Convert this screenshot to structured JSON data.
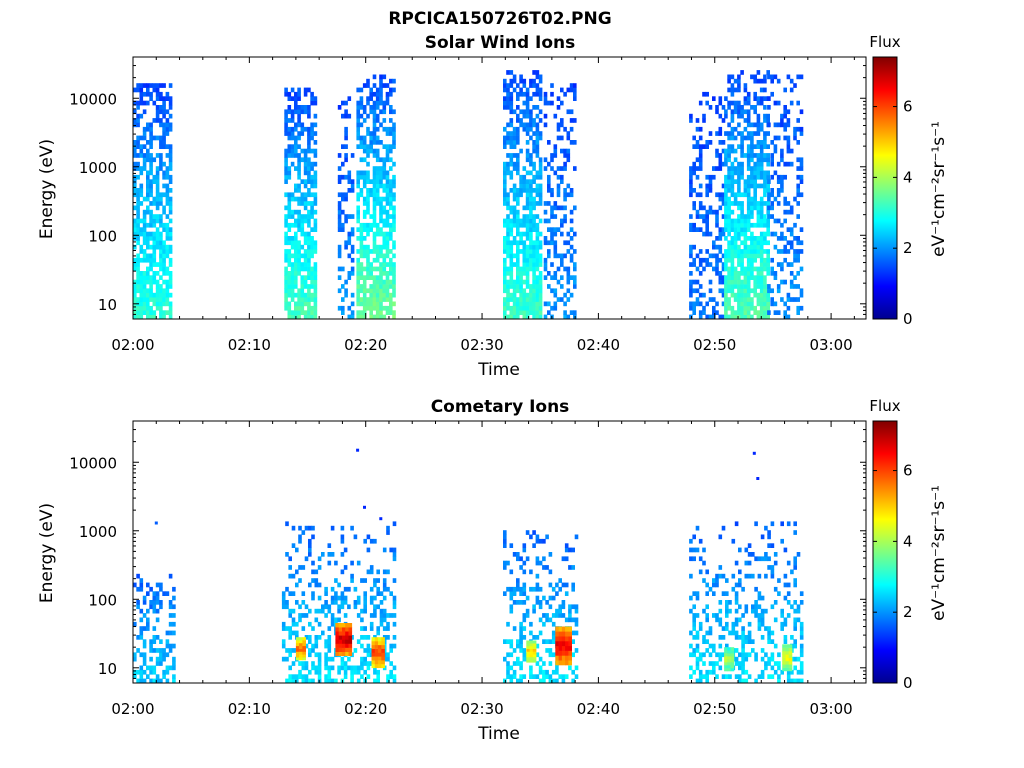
{
  "figure": {
    "title": "RPCICA150726T02.PNG"
  },
  "chart_data": [
    {
      "id": "solar",
      "type": "heatmap",
      "title": "Solar Wind Ions",
      "xlabel": "Time",
      "ylabel": "Energy (eV)",
      "x_ticks": [
        "02:00",
        "02:10",
        "02:20",
        "02:30",
        "02:40",
        "02:50",
        "03:00"
      ],
      "y_ticks": [
        "10",
        "100",
        "1000",
        "10000"
      ],
      "y_scale": "log",
      "ylim": [
        6,
        40000
      ],
      "xlim_minutes": [
        0,
        63
      ],
      "colorbar": {
        "label": "Flux",
        "unit": "eV⁻¹cm⁻²sr⁻¹s⁻¹",
        "ticks": [
          "0",
          "2",
          "4",
          "6"
        ],
        "range": [
          0,
          7.4
        ],
        "colormap": "jet"
      },
      "events": [
        {
          "t0": 0.0,
          "t1": 3.2,
          "emax": 16000,
          "fmax": 3.1
        },
        {
          "t0": 13.0,
          "t1": 15.6,
          "emax": 14000,
          "fmax": 3.3
        },
        {
          "t0": 17.6,
          "t1": 19.0,
          "emax": 10000,
          "fmax": 2.0,
          "sparse": true
        },
        {
          "t0": 19.2,
          "t1": 22.3,
          "emax": 22000,
          "fmax": 3.6
        },
        {
          "t0": 31.8,
          "t1": 35.1,
          "emax": 25000,
          "fmax": 3.2
        },
        {
          "t0": 35.3,
          "t1": 38.0,
          "emax": 15000,
          "fmax": 2.0,
          "sparse": true
        },
        {
          "t0": 47.8,
          "t1": 50.8,
          "emax": 12000,
          "fmax": 1.8,
          "sparse": true
        },
        {
          "t0": 50.8,
          "t1": 54.5,
          "emax": 24000,
          "fmax": 3.4
        },
        {
          "t0": 54.5,
          "t1": 57.5,
          "emax": 20000,
          "fmax": 2.0,
          "sparse": true
        }
      ]
    },
    {
      "id": "comet",
      "type": "heatmap",
      "title": "Cometary Ions",
      "xlabel": "Time",
      "ylabel": "Energy (eV)",
      "x_ticks": [
        "02:00",
        "02:10",
        "02:20",
        "02:30",
        "02:40",
        "02:50",
        "03:00"
      ],
      "y_ticks": [
        "10",
        "100",
        "1000",
        "10000"
      ],
      "y_scale": "log",
      "ylim": [
        6,
        40000
      ],
      "xlim_minutes": [
        0,
        63
      ],
      "colorbar": {
        "label": "Flux",
        "unit": "eV⁻¹cm⁻²sr⁻¹s⁻¹",
        "ticks": [
          "0",
          "2",
          "4",
          "6"
        ],
        "range": [
          0,
          7.4
        ],
        "colormap": "jet"
      },
      "events": [
        {
          "t0": 0.0,
          "t1": 3.4,
          "emax": 220,
          "fmax": 2.4,
          "sparse": true
        },
        {
          "t0": 12.8,
          "t1": 22.4,
          "emax": 1300,
          "fmax": 2.6,
          "sparse": true
        },
        {
          "t0": 31.8,
          "t1": 38.2,
          "emax": 1000,
          "fmax": 2.6,
          "sparse": true
        },
        {
          "t0": 47.8,
          "t1": 57.6,
          "emax": 1300,
          "fmax": 2.6,
          "sparse": true
        }
      ],
      "hotspots": [
        {
          "t0": 14.0,
          "t1": 14.6,
          "e0": 13,
          "e1": 28,
          "f": 5.8
        },
        {
          "t0": 17.4,
          "t1": 18.6,
          "e0": 15,
          "e1": 45,
          "f": 7.0
        },
        {
          "t0": 20.5,
          "t1": 21.5,
          "e0": 10,
          "e1": 28,
          "f": 6.2
        },
        {
          "t0": 33.8,
          "t1": 34.4,
          "e0": 12,
          "e1": 25,
          "f": 5.0
        },
        {
          "t0": 36.3,
          "t1": 37.6,
          "e0": 11,
          "e1": 40,
          "f": 6.8
        },
        {
          "t0": 50.8,
          "t1": 51.4,
          "e0": 9,
          "e1": 20,
          "f": 4.2
        },
        {
          "t0": 55.8,
          "t1": 56.6,
          "e0": 9,
          "e1": 22,
          "f": 4.6
        }
      ],
      "isolated_points": [
        {
          "t": 2.0,
          "e": 1300,
          "f": 1.6
        },
        {
          "t": 19.3,
          "e": 15000,
          "f": 1.2
        },
        {
          "t": 19.9,
          "e": 2200,
          "f": 1.2
        },
        {
          "t": 21.3,
          "e": 1500,
          "f": 1.2
        },
        {
          "t": 53.4,
          "e": 13500,
          "f": 1.2
        },
        {
          "t": 53.7,
          "e": 5800,
          "f": 1.2
        }
      ]
    }
  ]
}
